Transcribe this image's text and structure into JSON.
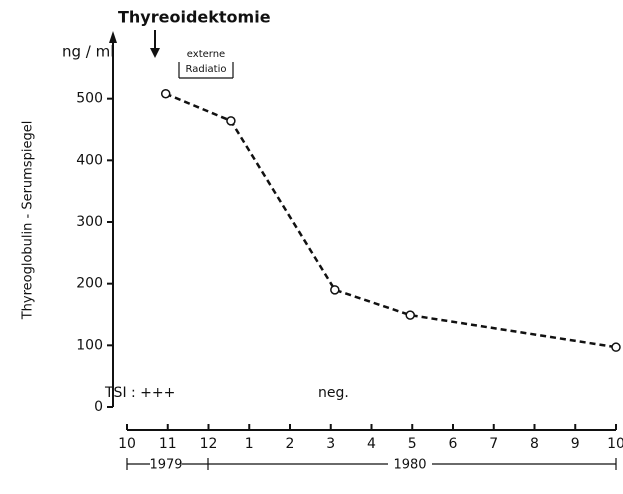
{
  "chart_data": {
    "type": "line",
    "y_unit": "ng / ml",
    "ylabel": "Thyreoglobulin - Serumspiegel",
    "event": "Thyreoidektomie",
    "therapy": [
      "externe",
      "Radiatio"
    ],
    "tsi_label": "TSI : +++",
    "tsi_later": "neg.",
    "years": [
      "1979",
      "1980"
    ],
    "x": [
      10.95,
      12.55,
      15.1,
      16.95,
      22
    ],
    "values": [
      508,
      464,
      190,
      149,
      97
    ],
    "color": "#111111",
    "xlim": [
      10,
      22
    ],
    "xticks": [
      10,
      11,
      12,
      {
        "value": 13,
        "label": "1"
      },
      {
        "value": 14,
        "label": "2"
      },
      {
        "value": 15,
        "label": "3"
      },
      {
        "value": 16,
        "label": "4"
      },
      {
        "value": 17,
        "label": "5"
      },
      {
        "value": 18,
        "label": "6"
      },
      {
        "value": 19,
        "label": "7"
      },
      {
        "value": 20,
        "label": "8"
      },
      {
        "value": 21,
        "label": "9"
      },
      {
        "value": 22,
        "label": "10"
      }
    ],
    "ylim": [
      0,
      600
    ],
    "yticks": [
      0,
      100,
      200,
      300,
      400,
      500
    ]
  }
}
